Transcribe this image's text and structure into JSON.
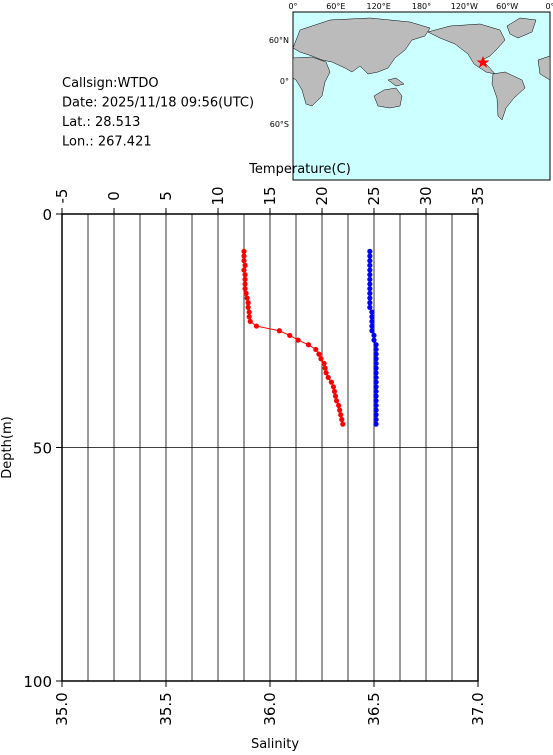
{
  "info": [
    "Callsign:WTDO",
    "Date:  2025/11/18 09:56(UTC)",
    "Lat.:  28.513",
    "Lon.:  267.421"
  ],
  "map": {
    "lon_labels": [
      "0°",
      "60°E",
      "120°E",
      "180°",
      "120°W",
      "60°W",
      "0°"
    ],
    "lat_labels": [
      "60°N",
      "0°",
      "60°S"
    ]
  },
  "chart_data": {
    "type": "profile",
    "x2label": "Temperature(C)",
    "xlabel": "Salinity",
    "ylabel": "Depth(m)",
    "x2lim": [
      -5,
      35
    ],
    "x2ticks": [
      -5,
      0,
      5,
      10,
      15,
      20,
      25,
      30,
      35
    ],
    "x2grid": [
      -2.5,
      0,
      2.5,
      5,
      7.5,
      10,
      12.5,
      15,
      17.5,
      20,
      22.5,
      25,
      27.5,
      30,
      32.5
    ],
    "xlim": [
      35,
      37
    ],
    "xticks": [
      {
        "value": 35,
        "label": "35.0"
      },
      35.5,
      {
        "value": 36,
        "label": "36.0"
      },
      36.5,
      {
        "value": 37,
        "label": "37.0"
      }
    ],
    "ylim": [
      0,
      100
    ],
    "yticks": [
      0,
      50,
      100
    ],
    "ygrid": [
      50
    ],
    "y_inverted": true,
    "series": [
      {
        "color": "#ff0000",
        "xaxis": "x2",
        "x": [
          12.5,
          12.5,
          12.5,
          12.6,
          12.5,
          12.6,
          12.6,
          12.6,
          12.6,
          12.7,
          12.8,
          12.9,
          12.9,
          13.0,
          13.0,
          13.1,
          13.7,
          15.9,
          16.9,
          17.7,
          18.7,
          19.4,
          19.7,
          19.9,
          20.2,
          20.3,
          20.4,
          20.6,
          20.9,
          21.1,
          21.2,
          21.3,
          21.4,
          21.6,
          21.7,
          21.8,
          21.9,
          22.0
        ],
        "y": [
          8,
          9,
          10,
          11,
          12,
          13,
          14,
          15,
          16,
          17,
          18,
          19,
          20,
          21,
          22,
          23,
          24,
          25,
          26,
          27,
          28,
          29,
          30,
          31,
          32,
          33,
          34,
          35,
          36,
          37,
          38,
          39,
          40,
          41,
          42,
          43,
          44,
          45
        ]
      },
      {
        "color": "#0000ff",
        "xaxis": "x",
        "x": [
          36.48,
          36.48,
          36.48,
          36.48,
          36.48,
          36.48,
          36.48,
          36.48,
          36.48,
          36.48,
          36.48,
          36.48,
          36.48,
          36.49,
          36.49,
          36.49,
          36.49,
          36.49,
          36.5,
          36.5,
          36.51,
          36.51,
          36.51,
          36.51,
          36.51,
          36.51,
          36.51,
          36.51,
          36.51,
          36.51,
          36.51,
          36.51,
          36.51,
          36.51,
          36.51,
          36.51,
          36.51,
          36.51
        ],
        "y": [
          8,
          9,
          10,
          11,
          12,
          13,
          14,
          15,
          16,
          17,
          18,
          19,
          20,
          21,
          22,
          23,
          24,
          25,
          26,
          27,
          28,
          29,
          30,
          31,
          32,
          33,
          34,
          35,
          36,
          37,
          38,
          39,
          40,
          41,
          42,
          43,
          44,
          45
        ]
      }
    ]
  }
}
